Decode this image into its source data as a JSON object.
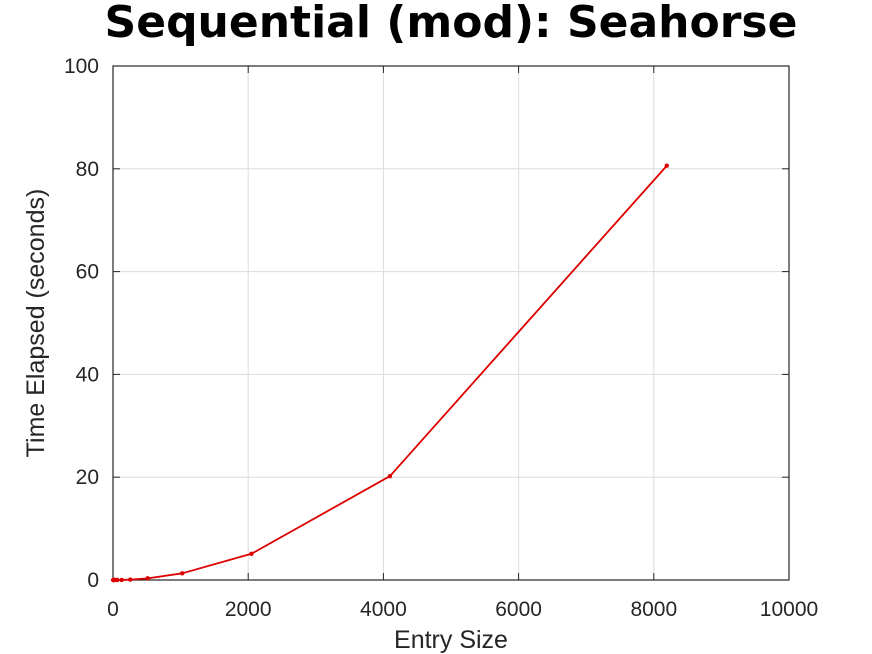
{
  "chart_data": {
    "type": "line",
    "title": "Sequential (mod): Seahorse",
    "xlabel": "Entry Size",
    "ylabel": "Time Elapsed (seconds)",
    "xlim": [
      0,
      10000
    ],
    "ylim": [
      0,
      100
    ],
    "xticks": [
      "0",
      "2000",
      "4000",
      "6000",
      "8000",
      "10000"
    ],
    "yticks": [
      "0",
      "20",
      "40",
      "60",
      "80",
      "100"
    ],
    "grid": true,
    "series": [
      {
        "color": "#dd0000",
        "x": [
          2,
          4,
          8,
          16,
          32,
          64,
          128,
          256,
          512,
          1024,
          2048,
          4096,
          8192
        ],
        "y": [
          0.0,
          0.0,
          0.0,
          0.0,
          0.0,
          0.0,
          0.02,
          0.08,
          0.32,
          1.3,
          5.1,
          20.2,
          80.6
        ]
      }
    ]
  }
}
